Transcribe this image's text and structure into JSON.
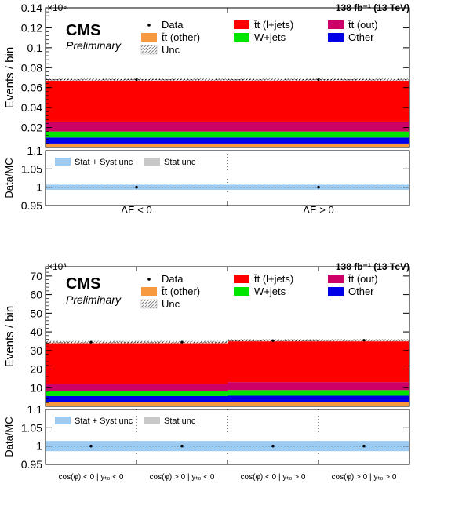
{
  "chart_data": [
    {
      "type": "bar",
      "stacked": true,
      "experiment": "CMS",
      "status": "Preliminary",
      "lumi": "138 fb⁻¹ (13 TeV)",
      "exponent": "×10⁶",
      "ylabel": "Events / bin",
      "ylim": [
        0,
        0.14
      ],
      "yticks": [
        0.02,
        0.04,
        0.06,
        0.08,
        0.1,
        0.12,
        0.14
      ],
      "categories": [
        "ΔE < 0",
        "ΔE > 0"
      ],
      "series": [
        {
          "name": "t̄t (other)",
          "color": "#f79a3f",
          "values": [
            0.004,
            0.004
          ]
        },
        {
          "name": "Other",
          "color": "#0000e6",
          "values": [
            0.006,
            0.006
          ]
        },
        {
          "name": "W+jets",
          "color": "#00e600",
          "values": [
            0.006,
            0.006
          ]
        },
        {
          "name": "t̄t (out)",
          "color": "#cc0066",
          "values": [
            0.01,
            0.01
          ]
        },
        {
          "name": "t̄t (l+jets)",
          "color": "#ff0000",
          "values": [
            0.042,
            0.042
          ]
        }
      ],
      "data": [
        0.068,
        0.068
      ],
      "legend": [
        {
          "label": "Data",
          "kind": "marker"
        },
        {
          "label": "t̄t (l+jets)",
          "kind": "box",
          "color": "#ff0000"
        },
        {
          "label": "t̄t (out)",
          "kind": "box",
          "color": "#cc0066"
        },
        {
          "label": "t̄t (other)",
          "kind": "box",
          "color": "#f79a3f"
        },
        {
          "label": "W+jets",
          "kind": "box",
          "color": "#00e600"
        },
        {
          "label": "Other",
          "kind": "box",
          "color": "#0000e6"
        },
        {
          "label": "Unc",
          "kind": "hatch"
        }
      ],
      "ratio": {
        "ylabel": "Data/MC",
        "ylim": [
          0.95,
          1.1
        ],
        "yticks": [
          0.95,
          1,
          1.05,
          1.1
        ],
        "band_lo": 0.993,
        "band_hi": 1.007,
        "values": [
          1.0,
          1.0
        ],
        "legend": [
          {
            "label": "Stat + Syst unc",
            "color": "#9ecbf2"
          },
          {
            "label": "Stat unc",
            "color": "#c8c8c8"
          }
        ]
      }
    },
    {
      "type": "bar",
      "stacked": true,
      "experiment": "CMS",
      "status": "Preliminary",
      "lumi": "138 fb⁻¹ (13 TeV)",
      "exponent": "×10³",
      "ylabel": "Events / bin",
      "ylim": [
        0,
        75
      ],
      "yticks": [
        10,
        20,
        30,
        40,
        50,
        60,
        70
      ],
      "categories": [
        "cos(φ) < 0 | yₜ₀ < 0",
        "cos(φ) > 0 | yₜ₀ < 0",
        "cos(φ) < 0 | yₜ₀ > 0",
        "cos(φ) > 0 | yₜ₀ > 0"
      ],
      "series": [
        {
          "name": "t̄t (other)",
          "color": "#f79a3f",
          "values": [
            2.5,
            2.5,
            2.5,
            2.5
          ]
        },
        {
          "name": "Other",
          "color": "#0000e6",
          "values": [
            3.0,
            3.0,
            3.2,
            3.2
          ]
        },
        {
          "name": "W+jets",
          "color": "#00e600",
          "values": [
            2.5,
            2.5,
            3.0,
            3.0
          ]
        },
        {
          "name": "t̄t (out)",
          "color": "#cc0066",
          "values": [
            4.0,
            4.0,
            4.3,
            4.3
          ]
        },
        {
          "name": "t̄t (l+jets)",
          "color": "#ff0000",
          "values": [
            22.5,
            22.5,
            22.5,
            22.5
          ]
        }
      ],
      "data": [
        34.5,
        34.5,
        35.3,
        35.5
      ],
      "legend": [
        {
          "label": "Data",
          "kind": "marker"
        },
        {
          "label": "t̄t (l+jets)",
          "kind": "box",
          "color": "#ff0000"
        },
        {
          "label": "t̄t (out)",
          "kind": "box",
          "color": "#cc0066"
        },
        {
          "label": "t̄t (other)",
          "kind": "box",
          "color": "#f79a3f"
        },
        {
          "label": "W+jets",
          "kind": "box",
          "color": "#00e600"
        },
        {
          "label": "Other",
          "kind": "box",
          "color": "#0000e6"
        },
        {
          "label": "Unc",
          "kind": "hatch"
        }
      ],
      "ratio": {
        "ylabel": "Data/MC",
        "ylim": [
          0.95,
          1.1
        ],
        "yticks": [
          0.95,
          1,
          1.05,
          1.1
        ],
        "band_lo": 0.986,
        "band_hi": 1.014,
        "values": [
          1.0,
          1.0,
          1.0,
          1.0
        ],
        "legend": [
          {
            "label": "Stat + Syst unc",
            "color": "#9ecbf2"
          },
          {
            "label": "Stat unc",
            "color": "#c8c8c8"
          }
        ]
      }
    }
  ]
}
